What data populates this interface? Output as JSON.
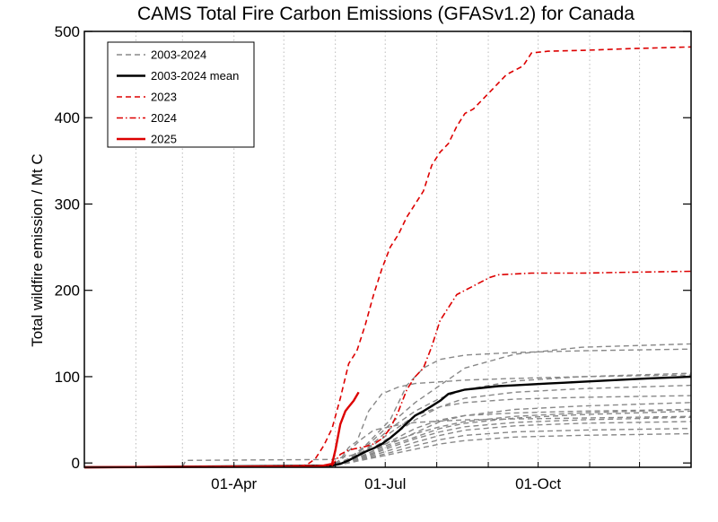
{
  "chart_data": {
    "type": "line",
    "title": "CAMS Total Fire Carbon Emissions (GFASv1.2) for Canada",
    "ylabel": "Total wildfire emission / Mt C",
    "xlabel": "",
    "x_unit": "day of year",
    "xlim": [
      1,
      366
    ],
    "ylim": [
      -5,
      500
    ],
    "yticks": [
      0,
      100,
      200,
      300,
      400,
      500
    ],
    "xticks": [
      {
        "day": 91,
        "label": "01-Apr"
      },
      {
        "day": 182,
        "label": "01-Jul"
      },
      {
        "day": 274,
        "label": "01-Oct"
      }
    ],
    "grid": "vertical dotted",
    "legend_position": "top-left",
    "legend": [
      {
        "label": "2003-2024",
        "color": "#888888",
        "style": "dashed",
        "width": 1.6
      },
      {
        "label": "2003-2024 mean",
        "color": "#000000",
        "style": "solid",
        "width": 2.4
      },
      {
        "label": "2023",
        "color": "#dd0000",
        "style": "dashed",
        "width": 1.6
      },
      {
        "label": "2024",
        "color": "#dd0000",
        "style": "dashdot",
        "width": 1.6
      },
      {
        "label": "2025",
        "color": "#dd0000",
        "style": "solid",
        "width": 2.4
      }
    ],
    "series": [
      {
        "name": "2003-2024",
        "color": "#888888",
        "style": "dashed",
        "width": 1.4,
        "x": [
          1,
          150,
          155,
          160,
          168,
          175,
          190,
          200,
          230,
          260,
          300,
          366
        ],
        "y": [
          -5,
          -3,
          2,
          14,
          28,
          38,
          44,
          47,
          50,
          51,
          52,
          54
        ]
      },
      {
        "name": "2003-2024",
        "color": "#888888",
        "style": "dashed",
        "width": 1.4,
        "x": [
          1,
          150,
          155,
          160,
          165,
          172,
          180,
          190,
          200,
          230,
          260,
          300,
          366
        ],
        "y": [
          -5,
          -3,
          4,
          18,
          25,
          60,
          80,
          88,
          92,
          96,
          98,
          100,
          102
        ]
      },
      {
        "name": "2003-2024",
        "color": "#888888",
        "style": "dashed",
        "width": 1.4,
        "x": [
          1,
          150,
          160,
          170,
          185,
          195,
          205,
          215,
          230,
          260,
          300,
          366
        ],
        "y": [
          -5,
          -3,
          5,
          20,
          50,
          90,
          110,
          120,
          125,
          128,
          130,
          132
        ]
      },
      {
        "name": "2003-2024",
        "color": "#888888",
        "style": "dashed",
        "width": 1.4,
        "x": [
          1,
          150,
          160,
          170,
          185,
          200,
          215,
          230,
          260,
          300,
          366
        ],
        "y": [
          -5,
          -3,
          5,
          18,
          45,
          70,
          90,
          110,
          126,
          134,
          138
        ]
      },
      {
        "name": "2003-2024",
        "color": "#888888",
        "style": "dashed",
        "width": 1.4,
        "x": [
          1,
          150,
          160,
          170,
          185,
          200,
          215,
          230,
          260,
          300,
          366
        ],
        "y": [
          -5,
          -3,
          4,
          15,
          40,
          60,
          75,
          85,
          95,
          100,
          104
        ]
      },
      {
        "name": "2003-2024",
        "color": "#888888",
        "style": "dashed",
        "width": 1.4,
        "x": [
          1,
          150,
          160,
          170,
          185,
          200,
          215,
          230,
          260,
          300,
          366
        ],
        "y": [
          -5,
          -3,
          3,
          12,
          30,
          50,
          65,
          75,
          82,
          86,
          90
        ]
      },
      {
        "name": "2003-2024",
        "color": "#888888",
        "style": "dashed",
        "width": 1.4,
        "x": [
          1,
          150,
          160,
          170,
          185,
          200,
          215,
          230,
          260,
          300,
          366
        ],
        "y": [
          -5,
          -3,
          2,
          10,
          22,
          35,
          48,
          55,
          62,
          66,
          70
        ]
      },
      {
        "name": "2003-2024",
        "color": "#888888",
        "style": "dashed",
        "width": 1.4,
        "x": [
          1,
          150,
          160,
          170,
          185,
          200,
          215,
          230,
          260,
          300,
          366
        ],
        "y": [
          -5,
          -3,
          2,
          8,
          20,
          30,
          40,
          46,
          52,
          56,
          60
        ]
      },
      {
        "name": "2003-2024",
        "color": "#888888",
        "style": "dashed",
        "width": 1.4,
        "x": [
          1,
          150,
          160,
          170,
          185,
          200,
          215,
          230,
          260,
          300,
          366
        ],
        "y": [
          -5,
          -3,
          1,
          6,
          15,
          24,
          32,
          38,
          43,
          46,
          48
        ]
      },
      {
        "name": "2003-2024",
        "color": "#888888",
        "style": "dashed",
        "width": 1.4,
        "x": [
          1,
          150,
          160,
          170,
          185,
          200,
          215,
          230,
          260,
          300,
          366
        ],
        "y": [
          -5,
          -3,
          1,
          5,
          12,
          20,
          27,
          32,
          36,
          38,
          40
        ]
      },
      {
        "name": "2003-2024",
        "color": "#888888",
        "style": "dashed",
        "width": 1.4,
        "x": [
          1,
          150,
          160,
          170,
          185,
          200,
          215,
          230,
          260,
          300,
          366
        ],
        "y": [
          -5,
          -3,
          0,
          4,
          10,
          16,
          22,
          26,
          30,
          32,
          34
        ]
      },
      {
        "name": "2003-2024",
        "color": "#888888",
        "style": "dashed",
        "width": 1.4,
        "x": [
          1,
          150,
          160,
          170,
          185,
          200,
          215,
          230,
          260,
          300,
          366
        ],
        "y": [
          -5,
          -3,
          3,
          14,
          35,
          55,
          65,
          70,
          74,
          76,
          78
        ]
      },
      {
        "name": "2003-2024",
        "color": "#888888",
        "style": "dashed",
        "width": 1.4,
        "x": [
          1,
          150,
          160,
          170,
          185,
          200,
          215,
          230,
          260,
          300,
          366
        ],
        "y": [
          -5,
          -3,
          2,
          9,
          25,
          40,
          50,
          55,
          58,
          60,
          62
        ]
      },
      {
        "name": "2003-2024",
        "color": "#888888",
        "style": "dashed",
        "width": 1.4,
        "x": [
          1,
          150,
          160,
          170,
          185,
          200,
          215,
          230,
          260,
          300,
          366
        ],
        "y": [
          -5,
          -3,
          1,
          7,
          18,
          28,
          36,
          42,
          47,
          50,
          53
        ]
      },
      {
        "name": "2003-2024",
        "color": "#888888",
        "style": "dashed",
        "width": 1.4,
        "x": [
          1,
          60,
          62,
          150,
          160,
          170,
          185,
          200,
          215,
          230,
          260,
          300,
          366
        ],
        "y": [
          -5,
          -5,
          3,
          4,
          8,
          14,
          24,
          34,
          42,
          48,
          54,
          58,
          62
        ]
      },
      {
        "name": "2003-2024 mean",
        "color": "#000000",
        "style": "solid",
        "width": 2.4,
        "x": [
          1,
          150,
          155,
          160,
          165,
          170,
          175,
          180,
          185,
          190,
          195,
          200,
          205,
          210,
          215,
          220,
          230,
          240,
          250,
          260,
          270,
          280,
          290,
          300,
          320,
          340,
          366
        ],
        "y": [
          -5,
          -3,
          -1,
          3,
          8,
          13,
          17,
          22,
          29,
          37,
          46,
          55,
          60,
          66,
          72,
          80,
          85,
          87,
          89,
          90,
          91,
          92,
          93,
          94,
          96,
          98,
          100
        ]
      },
      {
        "name": "2023",
        "color": "#dd0000",
        "style": "dashed",
        "width": 1.6,
        "x": [
          1,
          130,
          135,
          140,
          145,
          150,
          155,
          160,
          165,
          170,
          175,
          180,
          185,
          190,
          195,
          200,
          205,
          210,
          215,
          220,
          225,
          230,
          235,
          240,
          245,
          250,
          255,
          260,
          265,
          270,
          275,
          280,
          300,
          330,
          366
        ],
        "y": [
          -5,
          -4,
          -2,
          5,
          20,
          40,
          75,
          115,
          130,
          160,
          195,
          225,
          250,
          265,
          285,
          300,
          315,
          345,
          360,
          370,
          390,
          405,
          410,
          420,
          430,
          440,
          450,
          455,
          460,
          475,
          476,
          477,
          478,
          480,
          482
        ]
      },
      {
        "name": "2024",
        "color": "#dd0000",
        "style": "dashdot",
        "width": 1.6,
        "x": [
          1,
          150,
          155,
          160,
          165,
          170,
          175,
          180,
          185,
          190,
          195,
          200,
          205,
          210,
          215,
          220,
          225,
          230,
          235,
          240,
          245,
          250,
          260,
          270,
          300,
          330,
          366
        ],
        "y": [
          -5,
          -3,
          10,
          15,
          17,
          19,
          22,
          28,
          40,
          60,
          85,
          100,
          110,
          135,
          165,
          180,
          195,
          200,
          205,
          210,
          215,
          218,
          219,
          220,
          220,
          221,
          222
        ]
      },
      {
        "name": "2025",
        "color": "#dd0000",
        "style": "solid",
        "width": 2.4,
        "x": [
          1,
          140,
          145,
          150,
          152,
          155,
          158,
          160,
          163,
          166
        ],
        "y": [
          -5,
          -4,
          -3,
          -1,
          15,
          45,
          60,
          65,
          72,
          82
        ]
      }
    ]
  }
}
